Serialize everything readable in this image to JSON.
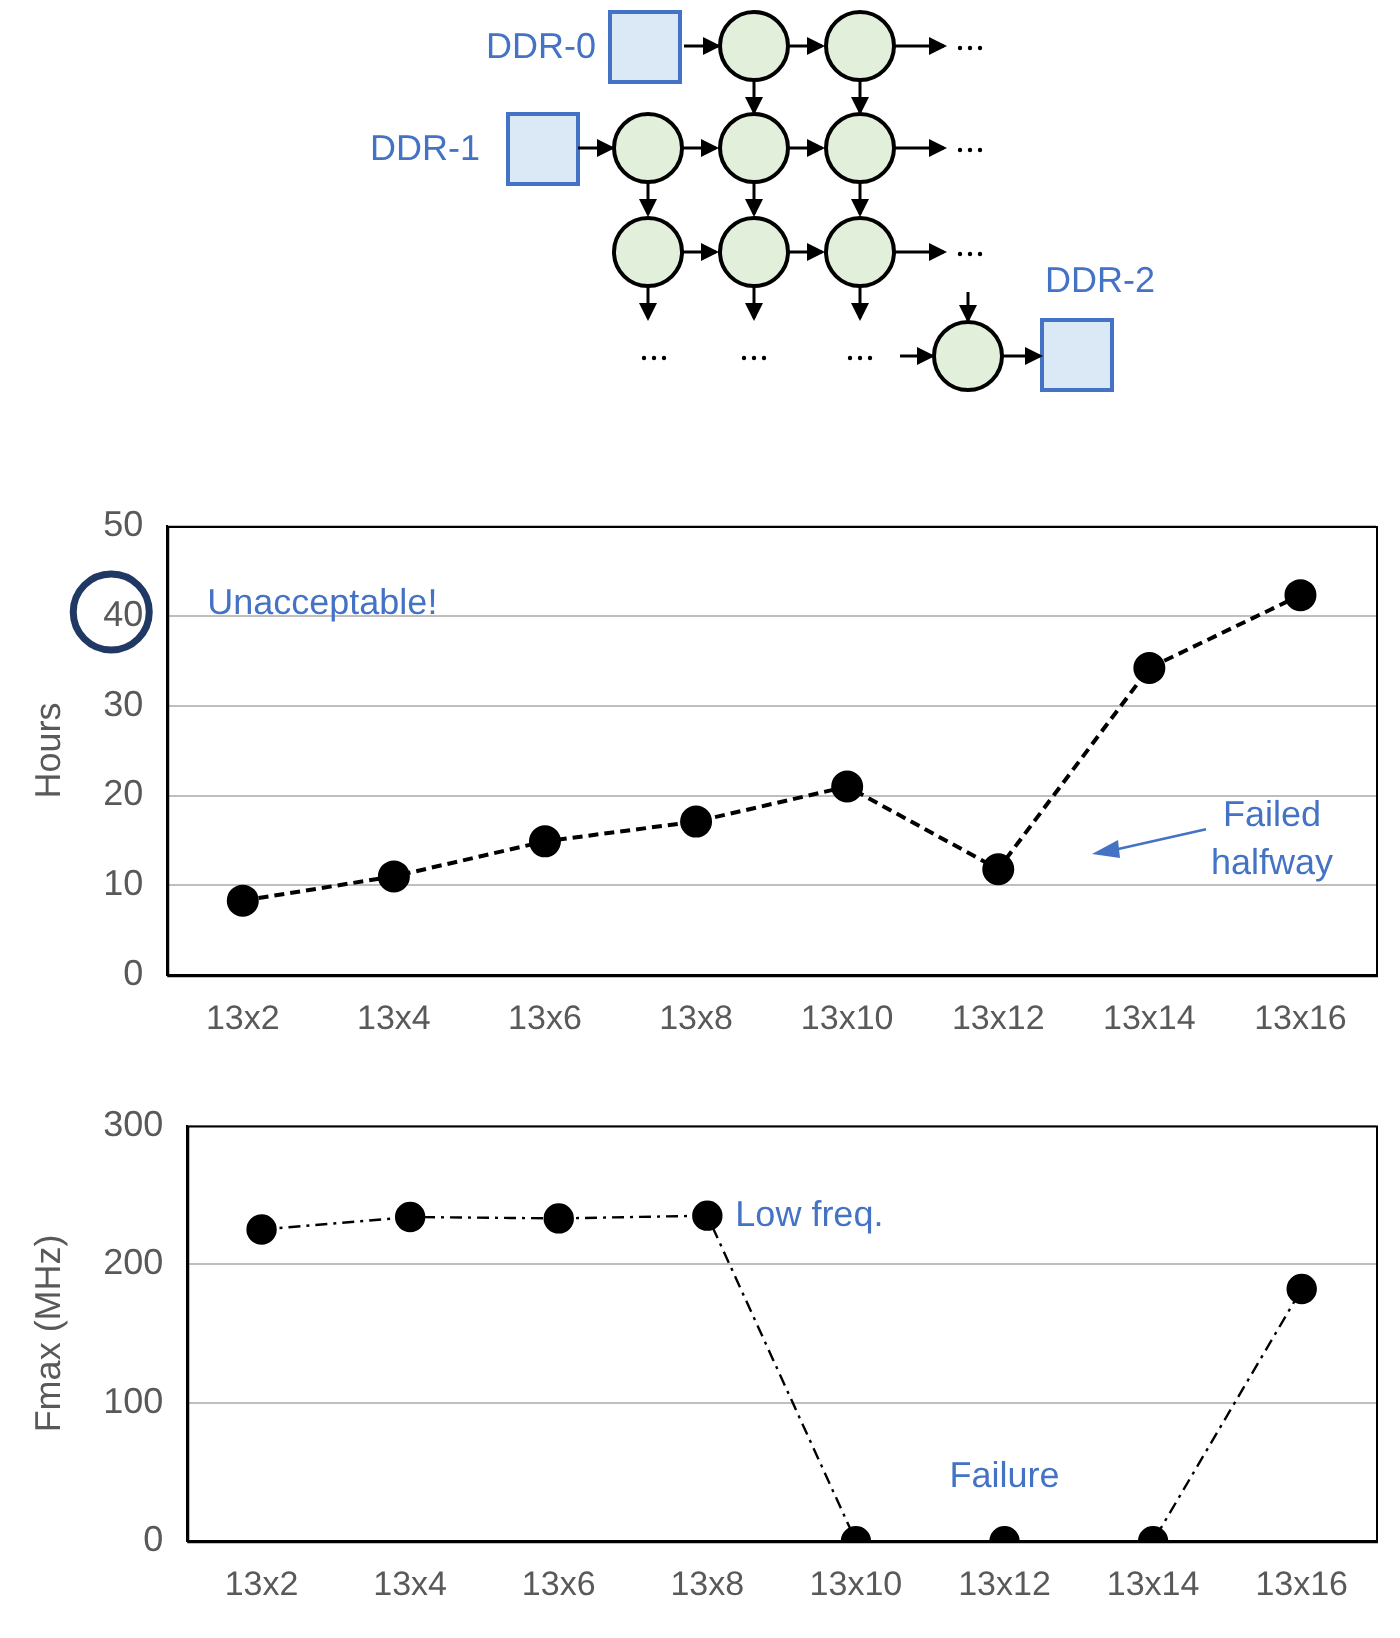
{
  "chart_data": [
    {
      "type": "other",
      "annotations": [
        "DDR-0",
        "DDR-1",
        "DDR-2"
      ]
    },
    {
      "type": "line",
      "ylabel": "Hours",
      "categories": [
        "13x2",
        "13x4",
        "13x6",
        "13x8",
        "13x10",
        "13x12",
        "13x14",
        "13x16"
      ],
      "values": [
        8.3,
        11,
        14.9,
        17.1,
        21,
        11.8,
        34.2,
        42.3
      ],
      "color": "#000000",
      "ylim": [
        0,
        50
      ],
      "yticks": [
        0,
        10,
        20,
        30,
        40,
        50
      ],
      "grid": "y",
      "legend": false,
      "marker": "circle",
      "line_style": "dashed",
      "annotations": [
        "Unacceptable!",
        "Failed halfway"
      ]
    },
    {
      "type": "line",
      "ylabel": "Fmax (MHz)",
      "categories": [
        "13x2",
        "13x4",
        "13x6",
        "13x8",
        "13x10",
        "13x12",
        "13x14",
        "13x16"
      ],
      "values": [
        225,
        234,
        233,
        235,
        0,
        0,
        0,
        182
      ],
      "color": "#000000",
      "ylim": [
        0,
        300
      ],
      "yticks": [
        0,
        100,
        200,
        300
      ],
      "grid": "y",
      "legend": false,
      "marker": "circle",
      "line_style": "dashed",
      "annotations": [
        {
          "text": "Low freq.",
          "x": "13x8",
          "y": 235
        },
        {
          "text": "Failure",
          "x": "13x12",
          "y": 0
        }
      ]
    }
  ]
}
